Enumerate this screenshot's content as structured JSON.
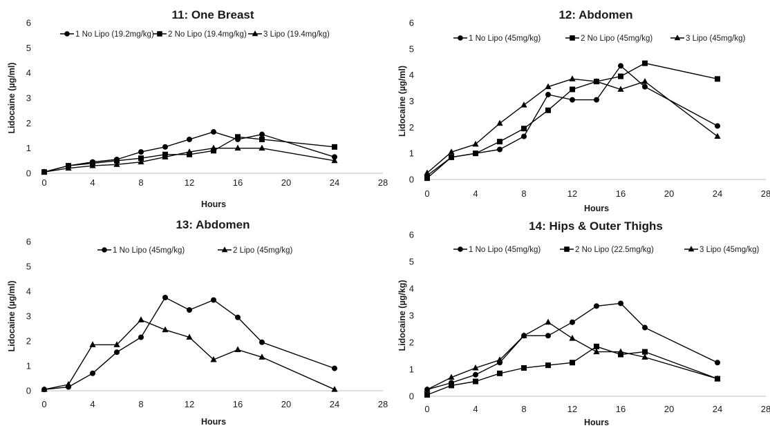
{
  "chart_data": [
    {
      "type": "line",
      "title": "11: One Breast",
      "xlabel": "Hours",
      "ylabel": "Lidocaine (µg/ml)",
      "xlim": [
        0,
        28
      ],
      "ylim": [
        0,
        6
      ],
      "xticks": [
        0,
        4,
        8,
        12,
        16,
        20,
        24,
        28
      ],
      "yticks": [
        0,
        1,
        2,
        3,
        4,
        5,
        6
      ],
      "series": [
        {
          "name": "1 No Lipo (19.2mg/kg)",
          "marker": "circle",
          "x": [
            0,
            2,
            4,
            6,
            8,
            10,
            12,
            14,
            16,
            18,
            24
          ],
          "y": [
            0.05,
            0.3,
            0.45,
            0.55,
            0.85,
            1.05,
            1.35,
            1.65,
            1.35,
            1.55,
            0.65
          ]
        },
        {
          "name": "2 No Lipo (19.4mg/kg)",
          "marker": "square",
          "x": [
            0,
            2,
            4,
            6,
            8,
            10,
            12,
            14,
            16,
            18,
            24
          ],
          "y": [
            0.05,
            0.3,
            0.4,
            0.5,
            0.6,
            0.75,
            0.75,
            0.9,
            1.45,
            1.35,
            1.05
          ]
        },
        {
          "name": "3 Lipo (19.4mg/kg)",
          "marker": "triangle",
          "x": [
            0,
            2,
            4,
            6,
            8,
            10,
            12,
            14,
            16,
            18,
            24
          ],
          "y": [
            0.05,
            0.2,
            0.3,
            0.35,
            0.45,
            0.65,
            0.85,
            1.0,
            1.0,
            1.0,
            0.5
          ]
        }
      ]
    },
    {
      "type": "line",
      "title": "12: Abdomen",
      "xlabel": "Hours",
      "ylabel": "Lidocaine (µg/ml)",
      "xlim": [
        0,
        28
      ],
      "ylim": [
        0,
        6
      ],
      "xticks": [
        0,
        4,
        8,
        12,
        16,
        20,
        24,
        28
      ],
      "yticks": [
        0,
        1,
        2,
        3,
        4,
        5,
        6
      ],
      "series": [
        {
          "name": "1 No Lipo (45mg/kg)",
          "marker": "circle",
          "x": [
            0,
            2,
            4,
            6,
            8,
            10,
            12,
            14,
            16,
            18,
            24
          ],
          "y": [
            0.15,
            0.85,
            1.0,
            1.15,
            1.65,
            3.25,
            3.05,
            3.05,
            4.35,
            3.55,
            2.05
          ]
        },
        {
          "name": "2 No Lipo (45mg/kg)",
          "marker": "square",
          "x": [
            0,
            2,
            4,
            6,
            8,
            10,
            12,
            14,
            16,
            18,
            24
          ],
          "y": [
            0.05,
            0.85,
            1.0,
            1.45,
            1.95,
            2.65,
            3.45,
            3.75,
            3.95,
            4.45,
            3.85
          ]
        },
        {
          "name": "3 Lipo (45mg/kg)",
          "marker": "triangle",
          "x": [
            0,
            2,
            4,
            6,
            8,
            10,
            12,
            14,
            16,
            18,
            24
          ],
          "y": [
            0.25,
            1.05,
            1.35,
            2.15,
            2.85,
            3.55,
            3.85,
            3.75,
            3.45,
            3.75,
            1.65
          ]
        }
      ]
    },
    {
      "type": "line",
      "title": "13: Abdomen",
      "xlabel": "Hours",
      "ylabel": "Lidocaine (µg/ml)",
      "xlim": [
        0,
        28
      ],
      "ylim": [
        0,
        6
      ],
      "xticks": [
        0,
        4,
        8,
        12,
        16,
        20,
        24,
        28
      ],
      "yticks": [
        0,
        1,
        2,
        3,
        4,
        5,
        6
      ],
      "series": [
        {
          "name": "1 No Lipo (45mg/kg)",
          "marker": "circle",
          "x": [
            0,
            2,
            4,
            6,
            8,
            10,
            12,
            14,
            16,
            18,
            24
          ],
          "y": [
            0.05,
            0.15,
            0.7,
            1.55,
            2.15,
            3.75,
            3.25,
            3.65,
            2.95,
            1.95,
            0.9
          ]
        },
        {
          "name": "2 Lipo (45mg/kg)",
          "marker": "triangle",
          "x": [
            0,
            2,
            4,
            6,
            8,
            10,
            12,
            14,
            16,
            18,
            24
          ],
          "y": [
            0.05,
            0.25,
            1.85,
            1.85,
            2.85,
            2.45,
            2.15,
            1.25,
            1.65,
            1.35,
            0.05
          ]
        }
      ]
    },
    {
      "type": "line",
      "title": "14: Hips & Outer Thighs",
      "xlabel": "Hours",
      "ylabel": "Lidocaine (µg/kg)",
      "xlim": [
        0,
        28
      ],
      "ylim": [
        0,
        6
      ],
      "xticks": [
        0,
        4,
        8,
        12,
        16,
        20,
        24,
        28
      ],
      "yticks": [
        0,
        1,
        2,
        3,
        4,
        5,
        6
      ],
      "series": [
        {
          "name": "1 No Lipo (45mg/kg)",
          "marker": "circle",
          "x": [
            0,
            2,
            4,
            6,
            8,
            10,
            12,
            14,
            16,
            18,
            24
          ],
          "y": [
            0.25,
            0.5,
            0.8,
            1.25,
            2.25,
            2.25,
            2.75,
            3.35,
            3.45,
            2.55,
            1.25
          ]
        },
        {
          "name": "2 No Lipo (22.5mg/kg)",
          "marker": "square",
          "x": [
            0,
            2,
            4,
            6,
            8,
            10,
            12,
            14,
            16,
            18,
            24
          ],
          "y": [
            0.05,
            0.4,
            0.55,
            0.85,
            1.05,
            1.15,
            1.25,
            1.85,
            1.55,
            1.65,
            0.65
          ]
        },
        {
          "name": "3 Lipo (45mg/kg)",
          "marker": "triangle",
          "x": [
            0,
            2,
            4,
            6,
            8,
            10,
            12,
            14,
            16,
            18,
            24
          ],
          "y": [
            0.25,
            0.7,
            1.05,
            1.35,
            2.25,
            2.75,
            2.15,
            1.65,
            1.65,
            1.45,
            0.65
          ]
        }
      ]
    }
  ]
}
